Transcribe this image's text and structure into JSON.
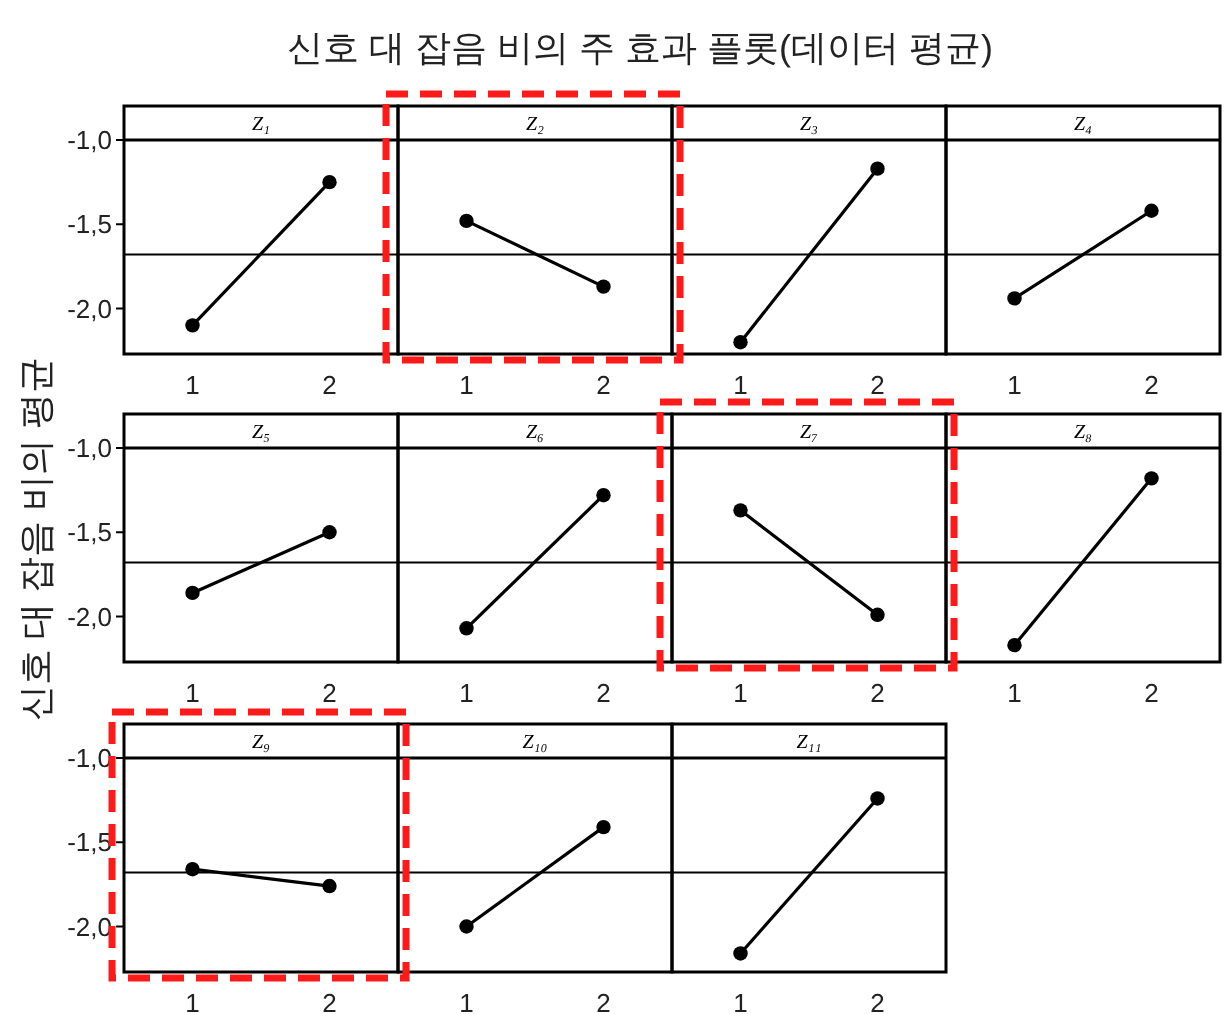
{
  "chart_data": [
    {
      "type": "line",
      "title": "Z₁",
      "annotations": [
        "신호 대 잡음 비의 주 효과 플롯(데이터 평균)"
      ],
      "ylabel": "신호 대 잡음 비의 평균",
      "categories": [
        "1",
        "2"
      ],
      "values": [
        -2.1,
        -1.25
      ],
      "color": "#000000",
      "marker": "circle",
      "ylim": [
        -2.27,
        -1.0
      ],
      "yticks": [
        {
          "value": -1.0,
          "label": "-1,0"
        },
        {
          "value": -1.5,
          "label": "-1,5"
        },
        {
          "value": -2.0,
          "label": "-2,0"
        }
      ],
      "ref_lines": [
        {
          "axis": "y",
          "value": -1.68,
          "color": "#000000"
        }
      ]
    },
    {
      "type": "line",
      "title": "Z₂",
      "categories": [
        "1",
        "2"
      ],
      "values": [
        -1.48,
        -1.87
      ],
      "color": "#000000",
      "marker": "circle",
      "ylim": [
        -2.27,
        -1.0
      ],
      "tick_labels": "x",
      "ref_lines": [
        {
          "axis": "y",
          "value": -1.68,
          "color": "#000000"
        }
      ]
    },
    {
      "type": "line",
      "title": "Z₃",
      "categories": [
        "1",
        "2"
      ],
      "values": [
        -2.2,
        -1.17
      ],
      "color": "#000000",
      "marker": "circle",
      "ylim": [
        -2.27,
        -1.0
      ],
      "tick_labels": "x",
      "ref_lines": [
        {
          "axis": "y",
          "value": -1.68,
          "color": "#000000"
        }
      ]
    },
    {
      "type": "line",
      "title": "Z₄",
      "categories": [
        "1",
        "2"
      ],
      "values": [
        -1.94,
        -1.42
      ],
      "color": "#000000",
      "marker": "circle",
      "ylim": [
        -2.27,
        -1.0
      ],
      "tick_labels": "x",
      "ref_lines": [
        {
          "axis": "y",
          "value": -1.68,
          "color": "#000000"
        }
      ]
    },
    {
      "type": "line",
      "title": "Z₅",
      "categories": [
        "1",
        "2"
      ],
      "values": [
        -1.86,
        -1.5
      ],
      "color": "#000000",
      "marker": "circle",
      "ylim": [
        -2.27,
        -1.0
      ],
      "yticks": [
        {
          "value": -1.0,
          "label": "-1,0"
        },
        {
          "value": -1.5,
          "label": "-1,5"
        },
        {
          "value": -2.0,
          "label": "-2,0"
        }
      ],
      "ref_lines": [
        {
          "axis": "y",
          "value": -1.68,
          "color": "#000000"
        }
      ]
    },
    {
      "type": "line",
      "title": "Z₆",
      "categories": [
        "1",
        "2"
      ],
      "values": [
        -2.07,
        -1.28
      ],
      "color": "#000000",
      "marker": "circle",
      "ylim": [
        -2.27,
        -1.0
      ],
      "tick_labels": "x",
      "ref_lines": [
        {
          "axis": "y",
          "value": -1.68,
          "color": "#000000"
        }
      ]
    },
    {
      "type": "line",
      "title": "Z₇",
      "categories": [
        "1",
        "2"
      ],
      "values": [
        -1.37,
        -1.99
      ],
      "color": "#000000",
      "marker": "circle",
      "ylim": [
        -2.27,
        -1.0
      ],
      "tick_labels": "x",
      "ref_lines": [
        {
          "axis": "y",
          "value": -1.68,
          "color": "#000000"
        }
      ]
    },
    {
      "type": "line",
      "title": "Z₈",
      "categories": [
        "1",
        "2"
      ],
      "values": [
        -2.17,
        -1.18
      ],
      "color": "#000000",
      "marker": "circle",
      "ylim": [
        -2.27,
        -1.0
      ],
      "tick_labels": "x",
      "ref_lines": [
        {
          "axis": "y",
          "value": -1.68,
          "color": "#000000"
        }
      ]
    },
    {
      "type": "line",
      "title": "Z₉",
      "categories": [
        "1",
        "2"
      ],
      "values": [
        -1.66,
        -1.76
      ],
      "color": "#000000",
      "marker": "circle",
      "ylim": [
        -2.27,
        -1.0
      ],
      "yticks": [
        {
          "value": -1.0,
          "label": "-1,0"
        },
        {
          "value": -1.5,
          "label": "-1,5"
        },
        {
          "value": -2.0,
          "label": "-2,0"
        }
      ],
      "ref_lines": [
        {
          "axis": "y",
          "value": -1.68,
          "color": "#000000"
        }
      ]
    },
    {
      "type": "line",
      "title": "Z₁₀",
      "categories": [
        "1",
        "2"
      ],
      "values": [
        -2.0,
        -1.41
      ],
      "color": "#000000",
      "marker": "circle",
      "ylim": [
        -2.27,
        -1.0
      ],
      "tick_labels": "x",
      "ref_lines": [
        {
          "axis": "y",
          "value": -1.68,
          "color": "#000000"
        }
      ]
    },
    {
      "type": "line",
      "title": "Z₁₁",
      "categories": [
        "1",
        "2"
      ],
      "values": [
        -2.16,
        -1.24
      ],
      "color": "#000000",
      "marker": "circle",
      "ylim": [
        -2.27,
        -1.0
      ],
      "tick_labels": "x",
      "ref_lines": [
        {
          "axis": "y",
          "value": -1.68,
          "color": "#000000"
        }
      ]
    }
  ]
}
